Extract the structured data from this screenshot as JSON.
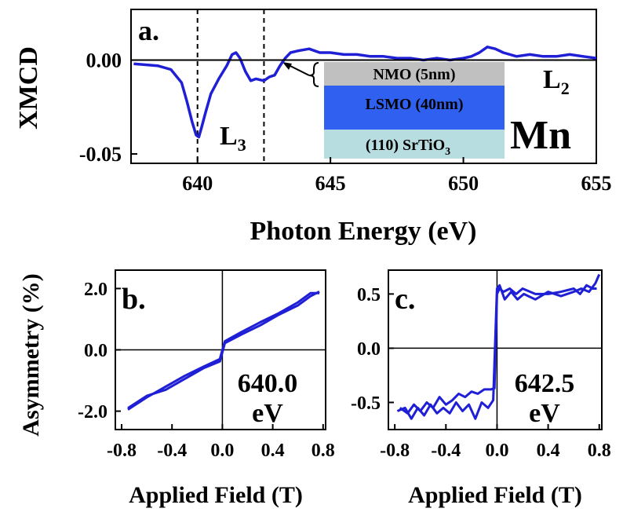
{
  "chart_data": [
    {
      "panel": "a.",
      "type": "line",
      "xlabel": "Photon Energy (eV)",
      "ylabel": "XMCD",
      "xlim": [
        637.5,
        655
      ],
      "ylim": [
        -0.055,
        0.027
      ],
      "xticks": [
        "640",
        "645",
        "650",
        "655"
      ],
      "xtick_values": [
        640,
        645,
        650,
        655
      ],
      "yticks": [
        "0.00",
        "-0.05"
      ],
      "ytick_values": [
        0.0,
        -0.05
      ],
      "vlines": [
        640.0,
        642.5
      ],
      "labels": {
        "l3": "L",
        "l3_sub": "3",
        "l2": "L",
        "l2_sub": "2",
        "element": "Mn"
      },
      "inset_layers": [
        {
          "label": "NMO (5nm)",
          "color": "#c0c0c0"
        },
        {
          "label": "LSMO (40nm)",
          "color": "#3060f0"
        },
        {
          "label": "(110) SrTiO",
          "sub": "3",
          "color": "#b7dde0"
        }
      ],
      "series": [
        {
          "color": "#1f1fd6",
          "x": [
            637.6,
            638.5,
            639.0,
            639.4,
            639.6,
            639.8,
            639.95,
            640.05,
            640.15,
            640.3,
            640.5,
            640.8,
            641.1,
            641.3,
            641.45,
            641.6,
            641.8,
            642.0,
            642.2,
            642.5,
            642.7,
            642.9,
            643.1,
            643.3,
            643.5,
            643.8,
            644.2,
            644.6,
            645.0,
            645.5,
            646.0,
            646.5,
            647.0,
            647.5,
            648.0,
            648.5,
            649.0,
            649.5,
            650.0,
            650.3,
            650.6,
            650.9,
            651.2,
            651.5,
            652.0,
            652.5,
            653.0,
            653.5,
            654.0,
            654.5,
            655.0
          ],
          "y": [
            -0.002,
            -0.003,
            -0.005,
            -0.012,
            -0.022,
            -0.033,
            -0.04,
            -0.041,
            -0.036,
            -0.028,
            -0.018,
            -0.01,
            -0.003,
            0.003,
            0.004,
            0.001,
            -0.006,
            -0.011,
            -0.01,
            -0.011,
            -0.009,
            -0.008,
            -0.003,
            0.001,
            0.004,
            0.005,
            0.006,
            0.004,
            0.004,
            0.003,
            0.003,
            0.002,
            0.002,
            0.001,
            0.001,
            0.0,
            0.001,
            0.0,
            0.001,
            0.002,
            0.004,
            0.007,
            0.006,
            0.004,
            0.002,
            0.003,
            0.002,
            0.002,
            0.003,
            0.002,
            0.001
          ]
        }
      ]
    },
    {
      "panel": "b.",
      "type": "line",
      "xlabel": "Applied Field (T)",
      "ylabel": "Asymmetry (%)",
      "xlim": [
        -0.85,
        0.82
      ],
      "ylim": [
        -2.6,
        2.6
      ],
      "xticks": [
        "-0.8",
        "-0.4",
        "0.0",
        "0.4",
        "0.8"
      ],
      "xtick_values": [
        -0.8,
        -0.4,
        0.0,
        0.4,
        0.8
      ],
      "yticks": [
        "2.0",
        "0.0",
        "-2.0"
      ],
      "ytick_values": [
        2.0,
        0.0,
        -2.0
      ],
      "annotation": "640.0",
      "annotation_unit": "eV",
      "series": [
        {
          "color": "#1f1fd6",
          "x": [
            -0.75,
            -0.6,
            -0.45,
            -0.3,
            -0.15,
            -0.02,
            0.02,
            0.15,
            0.3,
            0.45,
            0.6,
            0.7,
            0.77
          ],
          "y": [
            -1.95,
            -1.55,
            -1.2,
            -0.85,
            -0.55,
            -0.3,
            0.28,
            0.58,
            0.9,
            1.2,
            1.55,
            1.85,
            1.85
          ]
        },
        {
          "color": "#1f1fd6",
          "x": [
            -0.75,
            -0.6,
            -0.45,
            -0.3,
            -0.15,
            -0.02,
            0.02,
            0.15,
            0.3,
            0.45,
            0.6,
            0.7,
            0.77
          ],
          "y": [
            -1.9,
            -1.5,
            -1.3,
            -0.95,
            -0.6,
            -0.38,
            0.22,
            0.5,
            0.8,
            1.15,
            1.45,
            1.75,
            1.9
          ]
        }
      ]
    },
    {
      "panel": "c.",
      "type": "line",
      "xlabel": "Applied Field (T)",
      "ylabel": "",
      "xlim": [
        -0.85,
        0.82
      ],
      "ylim": [
        -0.75,
        0.72
      ],
      "xticks": [
        "-0.8",
        "-0.4",
        "0.0",
        "0.4",
        "0.8"
      ],
      "xtick_values": [
        -0.8,
        -0.4,
        0.0,
        0.4,
        0.8
      ],
      "yticks": [
        "0.5",
        "0.0",
        "-0.5"
      ],
      "ytick_values": [
        0.5,
        0.0,
        -0.5
      ],
      "annotation": "642.5",
      "annotation_unit": "eV",
      "series": [
        {
          "color": "#1f1fd6",
          "x": [
            -0.76,
            -0.7,
            -0.65,
            -0.6,
            -0.55,
            -0.5,
            -0.45,
            -0.4,
            -0.35,
            -0.3,
            -0.25,
            -0.2,
            -0.15,
            -0.1,
            -0.05,
            -0.02,
            0.0,
            0.02,
            0.05,
            0.1,
            0.15,
            0.2,
            0.3,
            0.4,
            0.5,
            0.6,
            0.65,
            0.7,
            0.75,
            0.78
          ],
          "y": [
            -0.55,
            -0.6,
            -0.52,
            -0.58,
            -0.5,
            -0.55,
            -0.45,
            -0.52,
            -0.48,
            -0.42,
            -0.45,
            -0.4,
            -0.42,
            -0.38,
            -0.38,
            -0.37,
            0.5,
            0.55,
            0.52,
            0.55,
            0.5,
            0.55,
            0.5,
            0.5,
            0.52,
            0.55,
            0.5,
            0.58,
            0.55,
            0.55
          ]
        },
        {
          "color": "#1f1fd6",
          "x": [
            -0.78,
            -0.72,
            -0.67,
            -0.62,
            -0.57,
            -0.52,
            -0.47,
            -0.42,
            -0.37,
            -0.32,
            -0.27,
            -0.22,
            -0.17,
            -0.12,
            -0.07,
            -0.03,
            0.0,
            0.02,
            0.06,
            0.11,
            0.16,
            0.21,
            0.3,
            0.4,
            0.5,
            0.6,
            0.66,
            0.72,
            0.77,
            0.8
          ],
          "y": [
            -0.58,
            -0.55,
            -0.65,
            -0.55,
            -0.62,
            -0.52,
            -0.6,
            -0.55,
            -0.6,
            -0.5,
            -0.58,
            -0.52,
            -0.65,
            -0.5,
            -0.55,
            -0.48,
            0.55,
            0.58,
            0.45,
            0.52,
            0.45,
            0.5,
            0.45,
            0.52,
            0.48,
            0.52,
            0.55,
            0.52,
            0.6,
            0.68
          ]
        }
      ]
    }
  ]
}
